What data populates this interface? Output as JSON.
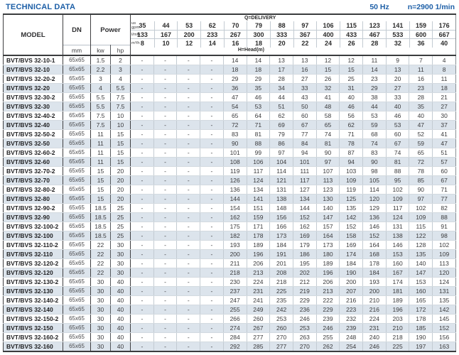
{
  "title": "TECHNICAL DATA",
  "header_right": {
    "frequency": "50 Hz",
    "speed": "n=2900 1/min"
  },
  "colors": {
    "title_blue": "#1d5fa7",
    "row_alt": "#dce4ec",
    "border_dark": "#3f3f41",
    "border_light": "#c3cbd2",
    "text_dark": "#2b2b2b"
  },
  "table": {
    "headers": {
      "model": "MODEL",
      "dn": "DN",
      "power": "Power",
      "mm": "mm",
      "kw": "kw",
      "hp": "hp",
      "delivery_label": "Q=DELIVERY",
      "head_label": "H=Head(m)"
    },
    "units": {
      "us_gpm": [
        "us",
        "gpm"
      ],
      "l_min": "l/min",
      "m3_h": "m³/h"
    },
    "delivery": {
      "us_gpm": [
        35,
        44,
        53,
        62,
        70,
        79,
        88,
        97,
        106,
        115,
        123,
        141,
        159,
        176
      ],
      "l_min": [
        133,
        167,
        200,
        233,
        267,
        300,
        333,
        367,
        400,
        433,
        467,
        533,
        600,
        667
      ],
      "m3_h": [
        8,
        10,
        12,
        14,
        16,
        18,
        20,
        22,
        24,
        26,
        28,
        32,
        36,
        40
      ]
    },
    "rows": [
      {
        "model": "BVT/BVS 32-10-1",
        "dn": "65x65",
        "kw": "1.5",
        "hp": "2",
        "head": [
          "-",
          "-",
          "-",
          "-",
          "14",
          "14",
          "13",
          "13",
          "12",
          "12",
          "11",
          "9",
          "7",
          "4"
        ]
      },
      {
        "model": "BVT/BVS 32-10",
        "dn": "65x65",
        "kw": "2.2",
        "hp": "3",
        "head": [
          "-",
          "-",
          "-",
          "-",
          "18",
          "18",
          "17",
          "16",
          "15",
          "15",
          "14",
          "13",
          "11",
          "8"
        ]
      },
      {
        "model": "BVT/BVS 32-20-2",
        "dn": "65x65",
        "kw": "3",
        "hp": "4",
        "head": [
          "-",
          "-",
          "-",
          "-",
          "29",
          "29",
          "28",
          "27",
          "26",
          "25",
          "23",
          "20",
          "16",
          "11"
        ]
      },
      {
        "model": "BVT/BVS 32-20",
        "dn": "65x65",
        "kw": "4",
        "hp": "5.5",
        "head": [
          "-",
          "-",
          "-",
          "-",
          "36",
          "35",
          "34",
          "33",
          "32",
          "31",
          "29",
          "27",
          "23",
          "18"
        ]
      },
      {
        "model": "BVT/BVS 32-30-2",
        "dn": "65x65",
        "kw": "5.5",
        "hp": "7.5",
        "head": [
          "-",
          "-",
          "-",
          "-",
          "47",
          "46",
          "44",
          "43",
          "41",
          "40",
          "38",
          "33",
          "28",
          "21"
        ]
      },
      {
        "model": "BVT/BVS 32-30",
        "dn": "65x65",
        "kw": "5.5",
        "hp": "7.5",
        "head": [
          "-",
          "-",
          "-",
          "-",
          "54",
          "53",
          "51",
          "50",
          "48",
          "46",
          "44",
          "40",
          "35",
          "27"
        ]
      },
      {
        "model": "BVT/BVS 32-40-2",
        "dn": "65x65",
        "kw": "7.5",
        "hp": "10",
        "head": [
          "-",
          "-",
          "-",
          "-",
          "65",
          "64",
          "62",
          "60",
          "58",
          "56",
          "53",
          "46",
          "40",
          "30"
        ]
      },
      {
        "model": "BVT/BVS 32-40",
        "dn": "65x65",
        "kw": "7.5",
        "hp": "10",
        "head": [
          "-",
          "-",
          "-",
          "-",
          "72",
          "71",
          "69",
          "67",
          "65",
          "62",
          "59",
          "53",
          "47",
          "37"
        ]
      },
      {
        "model": "BVT/BVS 32-50-2",
        "dn": "65x65",
        "kw": "11",
        "hp": "15",
        "head": [
          "-",
          "-",
          "-",
          "-",
          "83",
          "81",
          "79",
          "77",
          "74",
          "71",
          "68",
          "60",
          "52",
          "41"
        ]
      },
      {
        "model": "BVT/BVS 32-50",
        "dn": "65x65",
        "kw": "11",
        "hp": "15",
        "head": [
          "-",
          "-",
          "-",
          "-",
          "90",
          "88",
          "86",
          "84",
          "81",
          "78",
          "74",
          "67",
          "59",
          "47"
        ]
      },
      {
        "model": "BVT/BVS 32-60-2",
        "dn": "65x65",
        "kw": "11",
        "hp": "15",
        "head": [
          "-",
          "-",
          "-",
          "-",
          "101",
          "99",
          "97",
          "94",
          "90",
          "87",
          "83",
          "74",
          "65",
          "51"
        ]
      },
      {
        "model": "BVT/BVS 32-60",
        "dn": "65x65",
        "kw": "11",
        "hp": "15",
        "head": [
          "-",
          "-",
          "-",
          "-",
          "108",
          "106",
          "104",
          "101",
          "97",
          "94",
          "90",
          "81",
          "72",
          "57"
        ]
      },
      {
        "model": "BVT/BVS 32-70-2",
        "dn": "65x65",
        "kw": "15",
        "hp": "20",
        "head": [
          "-",
          "-",
          "-",
          "-",
          "119",
          "117",
          "114",
          "111",
          "107",
          "103",
          "98",
          "88",
          "78",
          "60"
        ]
      },
      {
        "model": "BVT/BVS 32-70",
        "dn": "65x65",
        "kw": "15",
        "hp": "20",
        "head": [
          "-",
          "-",
          "-",
          "-",
          "126",
          "124",
          "121",
          "117",
          "113",
          "109",
          "105",
          "95",
          "85",
          "67"
        ]
      },
      {
        "model": "BVT/BVS 32-80-2",
        "dn": "65x65",
        "kw": "15",
        "hp": "20",
        "head": [
          "-",
          "-",
          "-",
          "-",
          "136",
          "134",
          "131",
          "127",
          "123",
          "119",
          "114",
          "102",
          "90",
          "71"
        ]
      },
      {
        "model": "BVT/BVS 32-80",
        "dn": "65x65",
        "kw": "15",
        "hp": "20",
        "head": [
          "-",
          "-",
          "-",
          "-",
          "144",
          "141",
          "138",
          "134",
          "130",
          "125",
          "120",
          "109",
          "97",
          "77"
        ]
      },
      {
        "model": "BVT/BVS 32-90-2",
        "dn": "65x65",
        "kw": "18.5",
        "hp": "25",
        "head": [
          "-",
          "-",
          "-",
          "-",
          "154",
          "151",
          "148",
          "144",
          "140",
          "135",
          "129",
          "117",
          "102",
          "82"
        ]
      },
      {
        "model": "BVT/BVS 32-90",
        "dn": "65x65",
        "kw": "18.5",
        "hp": "25",
        "head": [
          "-",
          "-",
          "-",
          "-",
          "162",
          "159",
          "156",
          "152",
          "147",
          "142",
          "136",
          "124",
          "109",
          "88"
        ]
      },
      {
        "model": "BVT/BVS 32-100-2",
        "dn": "65x65",
        "kw": "18.5",
        "hp": "25",
        "head": [
          "-",
          "-",
          "-",
          "-",
          "175",
          "171",
          "166",
          "162",
          "157",
          "152",
          "146",
          "131",
          "115",
          "91"
        ]
      },
      {
        "model": "BVT/BVS 32-100",
        "dn": "65x65",
        "kw": "18.5",
        "hp": "25",
        "head": [
          "-",
          "-",
          "-",
          "-",
          "182",
          "178",
          "173",
          "169",
          "164",
          "158",
          "152",
          "138",
          "122",
          "98"
        ]
      },
      {
        "model": "BVT/BVS 32-110-2",
        "dn": "65x65",
        "kw": "22",
        "hp": "30",
        "head": [
          "-",
          "-",
          "-",
          "-",
          "193",
          "189",
          "184",
          "179",
          "173",
          "169",
          "164",
          "146",
          "128",
          "102"
        ]
      },
      {
        "model": "BVT/BVS 32-110",
        "dn": "65x65",
        "kw": "22",
        "hp": "30",
        "head": [
          "-",
          "-",
          "-",
          "-",
          "200",
          "196",
          "191",
          "186",
          "180",
          "174",
          "168",
          "153",
          "135",
          "109"
        ]
      },
      {
        "model": "BVT/BVS 32-120-2",
        "dn": "65x65",
        "kw": "22",
        "hp": "30",
        "head": [
          "-",
          "-",
          "-",
          "-",
          "211",
          "206",
          "201",
          "195",
          "189",
          "184",
          "178",
          "160",
          "140",
          "113"
        ]
      },
      {
        "model": "BVT/BVS 32-120",
        "dn": "65x65",
        "kw": "22",
        "hp": "30",
        "head": [
          "-",
          "-",
          "-",
          "-",
          "218",
          "213",
          "208",
          "202",
          "196",
          "190",
          "184",
          "167",
          "147",
          "120"
        ]
      },
      {
        "model": "BVT/BVS 32-130-2",
        "dn": "65x65",
        "kw": "30",
        "hp": "40",
        "head": [
          "-",
          "-",
          "-",
          "-",
          "230",
          "224",
          "218",
          "212",
          "206",
          "200",
          "193",
          "174",
          "153",
          "124"
        ]
      },
      {
        "model": "BVT/BVS 32-130",
        "dn": "65x65",
        "kw": "30",
        "hp": "40",
        "head": [
          "-",
          "-",
          "-",
          "-",
          "237",
          "231",
          "225",
          "219",
          "213",
          "207",
          "200",
          "181",
          "160",
          "131"
        ]
      },
      {
        "model": "BVT/BVS 32-140-2",
        "dn": "65x65",
        "kw": "30",
        "hp": "40",
        "head": [
          "-",
          "-",
          "-",
          "-",
          "247",
          "241",
          "235",
          "229",
          "222",
          "216",
          "210",
          "189",
          "165",
          "135"
        ]
      },
      {
        "model": "BVT/BVS 32-140",
        "dn": "65x65",
        "kw": "30",
        "hp": "40",
        "head": [
          "-",
          "-",
          "-",
          "-",
          "255",
          "249",
          "242",
          "236",
          "229",
          "223",
          "216",
          "196",
          "172",
          "142"
        ]
      },
      {
        "model": "BVT/BVS 32-150-2",
        "dn": "65x65",
        "kw": "30",
        "hp": "40",
        "head": [
          "-",
          "-",
          "-",
          "-",
          "266",
          "260",
          "253",
          "246",
          "239",
          "232",
          "224",
          "203",
          "178",
          "145"
        ]
      },
      {
        "model": "BVT/BVS 32-150",
        "dn": "65x65",
        "kw": "30",
        "hp": "40",
        "head": [
          "-",
          "-",
          "-",
          "-",
          "274",
          "267",
          "260",
          "253",
          "246",
          "239",
          "231",
          "210",
          "185",
          "152"
        ]
      },
      {
        "model": "BVT/BVS 32-160-2",
        "dn": "65x65",
        "kw": "30",
        "hp": "40",
        "head": [
          "-",
          "-",
          "-",
          "-",
          "284",
          "277",
          "270",
          "263",
          "255",
          "248",
          "240",
          "218",
          "190",
          "156"
        ]
      },
      {
        "model": "BVT/BVS 32-160",
        "dn": "65x65",
        "kw": "30",
        "hp": "40",
        "head": [
          "-",
          "-",
          "-",
          "-",
          "292",
          "285",
          "277",
          "270",
          "262",
          "254",
          "246",
          "225",
          "197",
          "163"
        ]
      }
    ]
  }
}
